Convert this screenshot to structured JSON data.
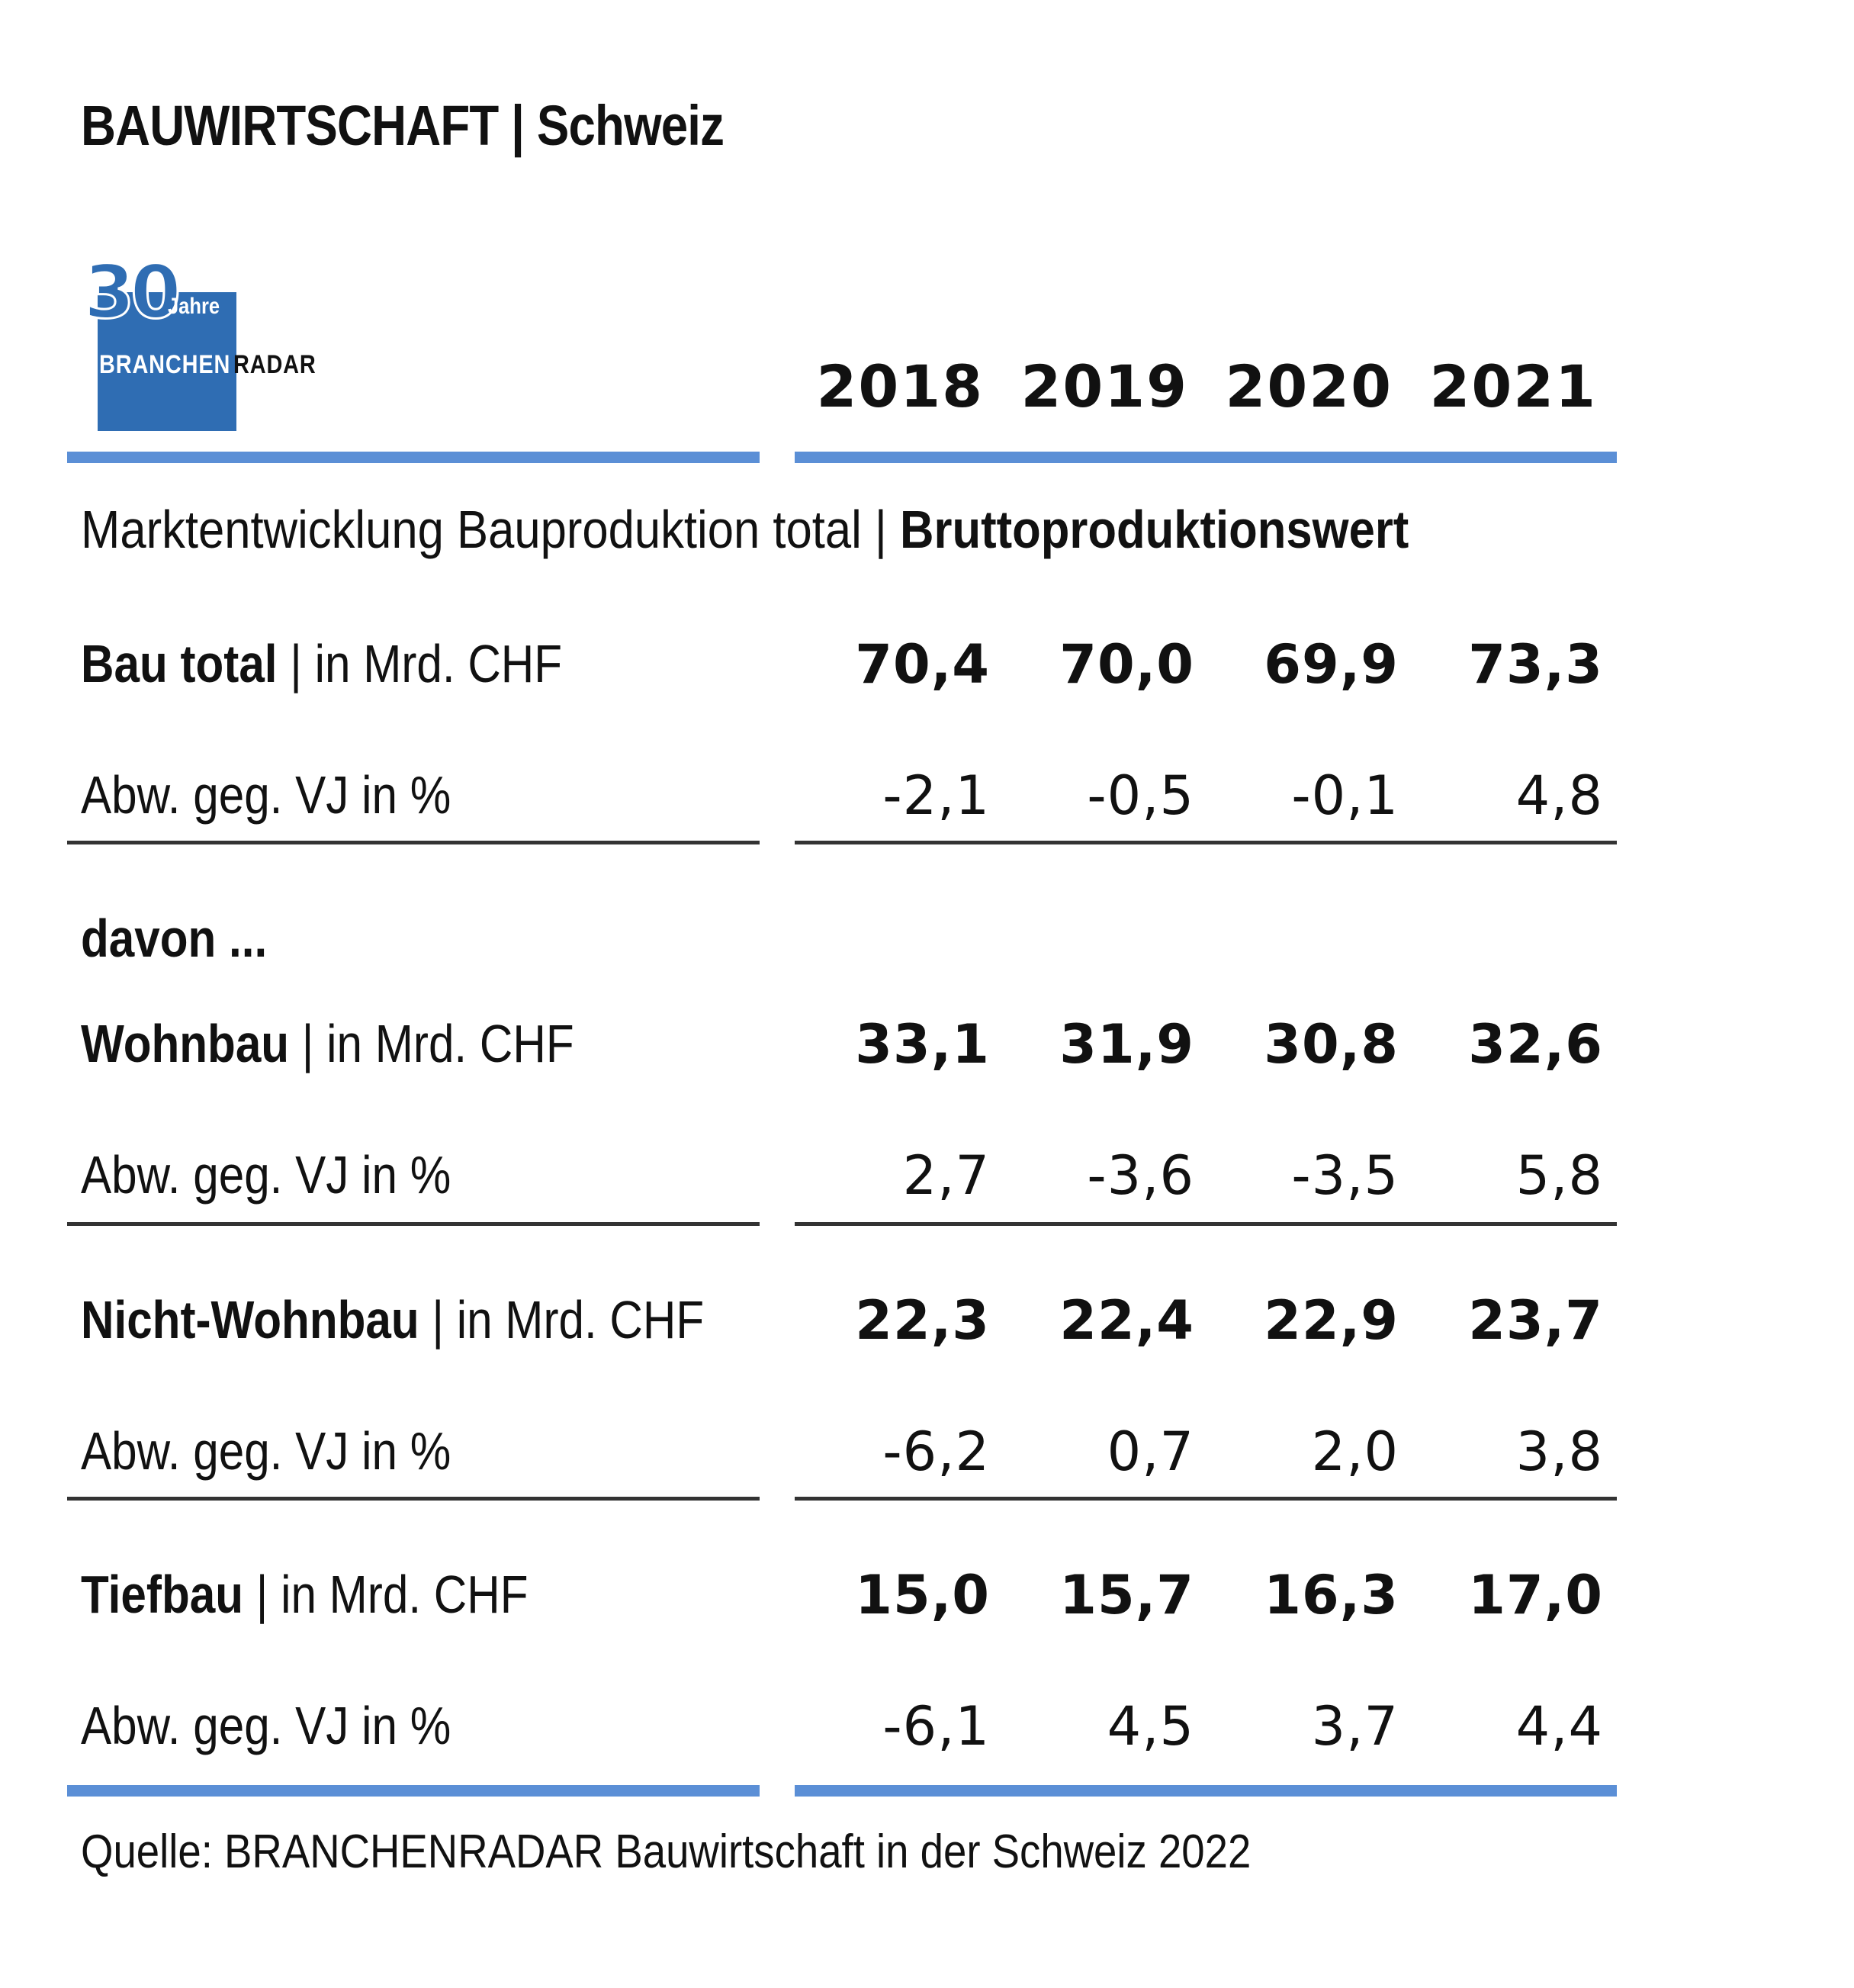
{
  "title": "BAUWIRTSCHAFT | Schweiz",
  "logo": {
    "number": "30",
    "jahre": "Jahre",
    "brand_a": "BRANCHEN",
    "brand_b": "RADAR"
  },
  "subtitle": {
    "regular": "Marktentwicklung Bauproduktion total | ",
    "bold": "Bruttoproduktionswert"
  },
  "davon_label": "davon ...",
  "source": "Quelle: BRANCHENRADAR Bauwirtschaft in der Schweiz 2022",
  "colors": {
    "accent_rule": "#5b8fd6",
    "logo_blue": "#2f6db3",
    "divider": "#333333"
  },
  "chart_data": {
    "type": "table",
    "columns": [
      "2018",
      "2019",
      "2020",
      "2021"
    ],
    "rows": [
      {
        "name": "Bau total",
        "unit": "| in Mrd. CHF",
        "values": [
          "70,4",
          "70,0",
          "69,9",
          "73,3"
        ],
        "change_label": "Abw. geg. VJ in %",
        "change": [
          "-2,1",
          "-0,5",
          "-0,1",
          "4,8"
        ]
      },
      {
        "name": "Wohnbau",
        "unit": "| in Mrd. CHF",
        "values": [
          "33,1",
          "31,9",
          "30,8",
          "32,6"
        ],
        "change_label": "Abw. geg. VJ in %",
        "change": [
          "2,7",
          "-3,6",
          "-3,5",
          "5,8"
        ]
      },
      {
        "name": "Nicht-Wohnbau",
        "unit": "| in Mrd. CHF",
        "values": [
          "22,3",
          "22,4",
          "22,9",
          "23,7"
        ],
        "change_label": "Abw. geg. VJ in %",
        "change": [
          "-6,2",
          "0,7",
          "2,0",
          "3,8"
        ]
      },
      {
        "name": "Tiefbau",
        "unit": "| in Mrd. CHF",
        "values": [
          "15,0",
          "15,7",
          "16,3",
          "17,0"
        ],
        "change_label": "Abw. geg. VJ in %",
        "change": [
          "-6,1",
          "4,5",
          "3,7",
          "4,4"
        ]
      }
    ]
  }
}
